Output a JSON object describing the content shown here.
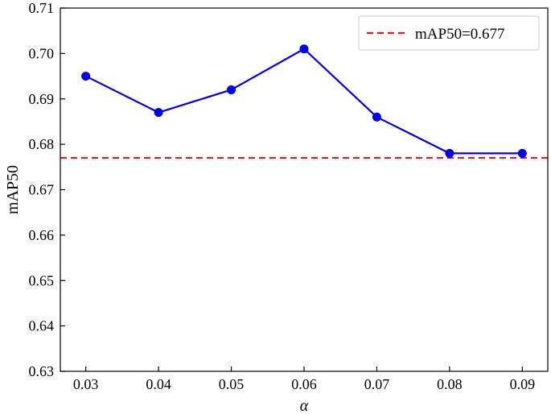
{
  "chart_data": {
    "type": "line",
    "title": "",
    "xlabel": "α",
    "ylabel": "mAP50",
    "x": [
      0.03,
      0.04,
      0.05,
      0.06,
      0.07,
      0.08,
      0.09
    ],
    "x_tick_labels": [
      "0.03",
      "0.04",
      "0.05",
      "0.06",
      "0.07",
      "0.08",
      "0.09"
    ],
    "y_ticks": [
      0.63,
      0.64,
      0.65,
      0.66,
      0.67,
      0.68,
      0.69,
      0.7,
      0.71
    ],
    "y_tick_labels": [
      "0.63",
      "0.64",
      "0.65",
      "0.66",
      "0.67",
      "0.68",
      "0.69",
      "0.70",
      "0.71"
    ],
    "xlim": [
      0.0265,
      0.0935
    ],
    "ylim": [
      0.63,
      0.71
    ],
    "series": [
      {
        "values": [
          0.695,
          0.687,
          0.692,
          0.701,
          0.686,
          0.678,
          0.678
        ],
        "color": "#0000ee",
        "style": "solid",
        "marker": "circle"
      }
    ],
    "reference_lines": [
      {
        "name": "mAP50=0.677",
        "y": 0.677,
        "color": "#e41a1c",
        "style": "dashed"
      }
    ],
    "legend": {
      "position": "top-right",
      "entries": [
        "mAP50=0.677"
      ]
    },
    "grid": false
  }
}
